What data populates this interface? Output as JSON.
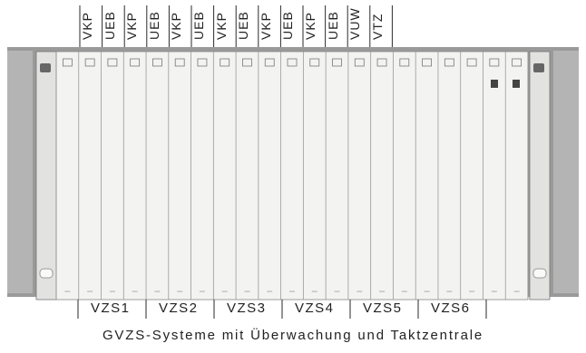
{
  "top_labels": [
    "VKP",
    "UEB",
    "VKP",
    "UEB",
    "VKP",
    "UEB",
    "VKP",
    "UEB",
    "VKP",
    "UEB",
    "VKP",
    "UEB",
    "VUW",
    "VTZ"
  ],
  "group_labels": [
    "VZS1",
    "VZS2",
    "VZS3",
    "VZS4",
    "VZS5",
    "VZS6"
  ],
  "caption": "GVZS-Systeme mit Überwachung und Taktzentrale",
  "colors": {
    "frame_grey": "#9a9a9a",
    "card_white": "#f3f3f1",
    "line_dark": "#2a2a2a"
  }
}
